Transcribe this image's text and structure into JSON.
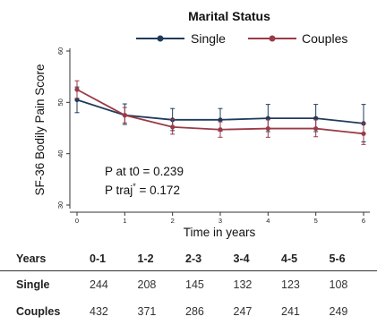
{
  "chart_data": {
    "type": "line",
    "title": "Marital Status",
    "xlabel": "Time in years",
    "ylabel": "SF-36 Bodily Pain Score",
    "x": [
      0,
      1,
      2,
      3,
      4,
      5,
      6
    ],
    "xlim": [
      0,
      6
    ],
    "ylim": [
      30,
      60
    ],
    "yticks": [
      30,
      40,
      50,
      60
    ],
    "legend_position": "top",
    "series": [
      {
        "name": "Single",
        "color": "#1f3b5c",
        "values": [
          50.5,
          47.5,
          46.6,
          46.6,
          46.9,
          46.9,
          45.9
        ],
        "ci_low": [
          48.0,
          45.7,
          44.5,
          44.4,
          44.3,
          44.3,
          42.3
        ],
        "ci_high": [
          53.0,
          49.7,
          48.8,
          48.8,
          49.6,
          49.6,
          49.6
        ]
      },
      {
        "name": "Couples",
        "color": "#9b3a48",
        "values": [
          52.5,
          47.5,
          45.2,
          44.7,
          44.9,
          44.9,
          43.9
        ],
        "ci_low": [
          50.8,
          46.0,
          43.8,
          43.2,
          43.2,
          43.3,
          41.8
        ],
        "ci_high": [
          54.2,
          49.0,
          46.7,
          46.2,
          46.6,
          46.6,
          46.0
        ]
      }
    ],
    "annotations": [
      "P at t0 = 0.239",
      "P traj",
      "*",
      " = 0.172"
    ]
  },
  "table": {
    "headers": [
      "Years",
      "0-1",
      "1-2",
      "2-3",
      "3-4",
      "4-5",
      "5-6"
    ],
    "rows": [
      {
        "label": "Single",
        "values": [
          "244",
          "208",
          "145",
          "132",
          "123",
          "108"
        ]
      },
      {
        "label": "Couples",
        "values": [
          "432",
          "371",
          "286",
          "247",
          "241",
          "249"
        ]
      }
    ]
  }
}
